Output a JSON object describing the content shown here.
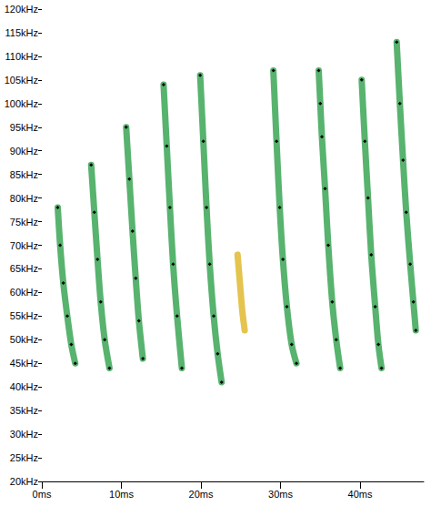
{
  "chart_data": {
    "type": "line",
    "xlim": [
      0,
      48
    ],
    "xticks": [
      {
        "value": 0,
        "label": "0ms"
      },
      {
        "value": 10,
        "label": "10ms"
      },
      {
        "value": 20,
        "label": "20ms"
      },
      {
        "value": 30,
        "label": "30ms"
      },
      {
        "value": 40,
        "label": "40ms"
      }
    ],
    "ylim": [
      20,
      120
    ],
    "yticks": [
      {
        "value": 20,
        "label": "20kHz"
      },
      {
        "value": 25,
        "label": "25kHz"
      },
      {
        "value": 30,
        "label": "30kHz"
      },
      {
        "value": 35,
        "label": "35kHz"
      },
      {
        "value": 40,
        "label": "40kHz"
      },
      {
        "value": 45,
        "label": "45kHz"
      },
      {
        "value": 50,
        "label": "50kHz"
      },
      {
        "value": 55,
        "label": "55kHz"
      },
      {
        "value": 60,
        "label": "60kHz"
      },
      {
        "value": 65,
        "label": "65kHz"
      },
      {
        "value": 70,
        "label": "70kHz"
      },
      {
        "value": 75,
        "label": "75kHz"
      },
      {
        "value": 80,
        "label": "80kHz"
      },
      {
        "value": 85,
        "label": "85kHz"
      },
      {
        "value": 90,
        "label": "90kHz"
      },
      {
        "value": 95,
        "label": "95kHz"
      },
      {
        "value": 100,
        "label": "100kHz"
      },
      {
        "value": 105,
        "label": "105kHz"
      },
      {
        "value": 110,
        "label": "110kHz"
      },
      {
        "value": 115,
        "label": "115kHz"
      },
      {
        "value": 120,
        "label": "120kHz"
      }
    ],
    "grid": false,
    "series": [
      {
        "type": "line",
        "color": "#3aa655",
        "marker": "diamond",
        "values": [
          [
            2.0,
            78
          ],
          [
            2.3,
            70
          ],
          [
            2.7,
            62
          ],
          [
            3.2,
            55
          ],
          [
            3.7,
            49
          ],
          [
            4.2,
            45
          ],
          null,
          [
            6.2,
            87
          ],
          [
            6.6,
            77
          ],
          [
            7.0,
            67
          ],
          [
            7.4,
            58
          ],
          [
            7.9,
            50
          ],
          [
            8.5,
            44
          ],
          null,
          [
            10.6,
            95
          ],
          [
            11.0,
            84
          ],
          [
            11.4,
            73
          ],
          [
            11.8,
            63
          ],
          [
            12.2,
            54
          ],
          [
            12.7,
            46
          ],
          null,
          [
            15.3,
            104
          ],
          [
            15.7,
            91
          ],
          [
            16.1,
            78
          ],
          [
            16.5,
            66
          ],
          [
            17.0,
            55
          ],
          [
            17.6,
            44
          ],
          null,
          [
            19.9,
            106
          ],
          [
            20.3,
            92
          ],
          [
            20.7,
            78
          ],
          [
            21.1,
            66
          ],
          [
            21.6,
            55
          ],
          [
            22.1,
            47
          ],
          [
            22.6,
            41
          ],
          null,
          [
            29.1,
            107
          ],
          [
            29.5,
            92
          ],
          [
            29.9,
            78
          ],
          [
            30.3,
            67
          ],
          [
            30.8,
            57
          ],
          [
            31.4,
            49
          ],
          [
            32.0,
            45
          ],
          null,
          [
            34.8,
            107
          ],
          [
            35.0,
            100
          ],
          [
            35.2,
            93
          ],
          [
            35.6,
            82
          ],
          [
            36.0,
            70
          ],
          [
            36.5,
            58
          ],
          [
            37.0,
            50
          ],
          [
            37.5,
            44
          ],
          null,
          [
            40.2,
            105
          ],
          [
            40.6,
            92
          ],
          [
            41.0,
            80
          ],
          [
            41.4,
            68
          ],
          [
            41.9,
            57
          ],
          [
            42.3,
            49
          ],
          [
            42.7,
            44
          ],
          null,
          [
            44.6,
            113
          ],
          [
            45.0,
            100
          ],
          [
            45.4,
            88
          ],
          [
            45.8,
            77
          ],
          [
            46.3,
            66
          ],
          [
            46.7,
            58
          ],
          [
            47.0,
            52
          ]
        ]
      },
      {
        "type": "line",
        "color": "#e0b830",
        "marker": "none",
        "values": [
          [
            24.6,
            68
          ],
          [
            24.9,
            62
          ],
          [
            25.2,
            56
          ],
          [
            25.5,
            52
          ]
        ]
      }
    ]
  }
}
